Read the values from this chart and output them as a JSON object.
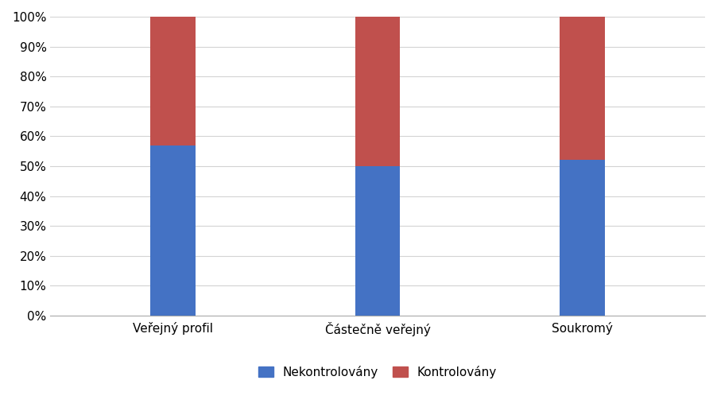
{
  "categories": [
    "Veřejný profil",
    "Částečně veřejný",
    "Soukromý"
  ],
  "nekontrolovany": [
    0.57,
    0.5,
    0.52
  ],
  "kontrolovany": [
    0.43,
    0.5,
    0.48
  ],
  "color_nekontrolovany": "#4472C4",
  "color_kontrolovany": "#C0504D",
  "legend_nekontrolovany": "Nekontrolovány",
  "legend_kontrolovany": "Kontrolovány",
  "yticks": [
    0.0,
    0.1,
    0.2,
    0.3,
    0.4,
    0.5,
    0.6,
    0.7,
    0.8,
    0.9,
    1.0
  ],
  "ytick_labels": [
    "0%",
    "10%",
    "20%",
    "30%",
    "40%",
    "50%",
    "60%",
    "70%",
    "80%",
    "90%",
    "100%"
  ],
  "background_color": "#ffffff",
  "grid_color": "#d3d3d3",
  "bar_width": 0.22,
  "tick_fontsize": 11,
  "legend_fontsize": 11
}
